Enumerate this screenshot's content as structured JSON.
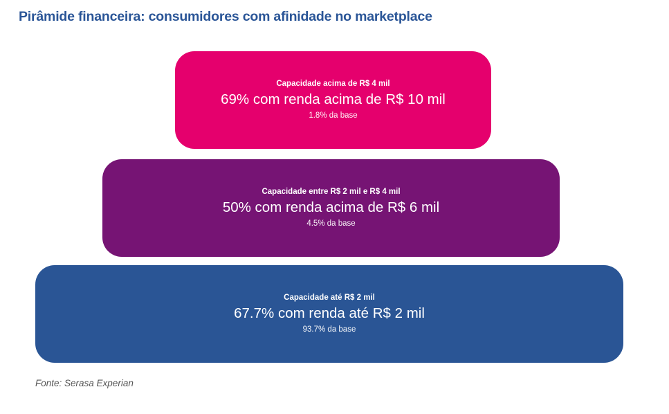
{
  "title": "Pirâmide financeira: consumidores com afinidade no marketplace",
  "tiers": [
    {
      "capacity": "Capacidade acima de R$ 4 mil",
      "headline": "69% com renda acima de R$ 10 mil",
      "share": "1.8% da base",
      "color": "#e5006d"
    },
    {
      "capacity": "Capacidade entre R$ 2 mil e R$ 4 mil",
      "headline": "50% com renda acima de R$ 6 mil",
      "share": "4.5% da base",
      "color": "#761474"
    },
    {
      "capacity": "Capacidade até R$ 2 mil",
      "headline": "67.7% com renda até R$ 2 mil",
      "share": "93.7% da base",
      "color": "#2a5595"
    }
  ],
  "source": "Fonte: Serasa Experian",
  "colors": {
    "title": "#2a5597",
    "source": "#555555"
  }
}
